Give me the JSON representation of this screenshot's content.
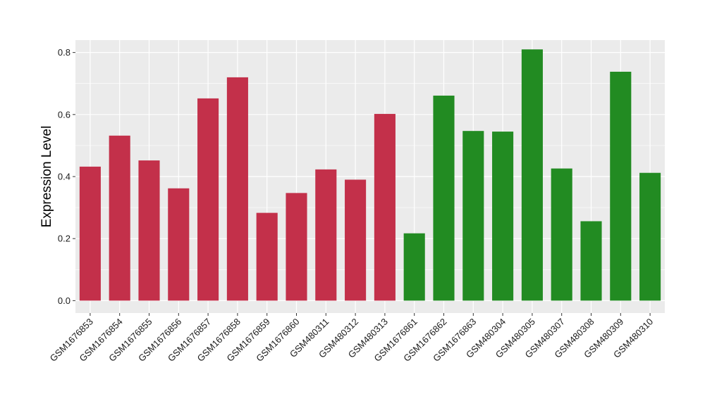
{
  "chart_data": {
    "type": "bar",
    "title": "",
    "xlabel": "",
    "ylabel": "Expression Level",
    "ylim": [
      -0.04,
      0.84
    ],
    "yticks": [
      0.0,
      0.2,
      0.4,
      0.6,
      0.8
    ],
    "ytick_labels": [
      "0.0",
      "0.2",
      "0.4",
      "0.6",
      "0.8"
    ],
    "grid": true,
    "categories": [
      "GSM1676853",
      "GSM1676854",
      "GSM1676855",
      "GSM1676856",
      "GSM1676857",
      "GSM1676858",
      "GSM1676859",
      "GSM1676860",
      "GSM480311",
      "GSM480312",
      "GSM480313",
      "GSM1676861",
      "GSM1676862",
      "GSM1676863",
      "GSM480304",
      "GSM480305",
      "GSM480307",
      "GSM480308",
      "GSM480309",
      "GSM480310"
    ],
    "values": [
      0.432,
      0.532,
      0.452,
      0.362,
      0.652,
      0.72,
      0.283,
      0.347,
      0.423,
      0.39,
      0.602,
      0.217,
      0.661,
      0.547,
      0.545,
      0.81,
      0.426,
      0.256,
      0.738,
      0.412
    ],
    "bar_colors": [
      "#c3304a",
      "#c3304a",
      "#c3304a",
      "#c3304a",
      "#c3304a",
      "#c3304a",
      "#c3304a",
      "#c3304a",
      "#c3304a",
      "#c3304a",
      "#c3304a",
      "#228b22",
      "#228b22",
      "#228b22",
      "#228b22",
      "#228b22",
      "#228b22",
      "#228b22",
      "#228b22",
      "#228b22"
    ],
    "panel_background": "#ebebeb",
    "grid_color": "#ffffff"
  }
}
